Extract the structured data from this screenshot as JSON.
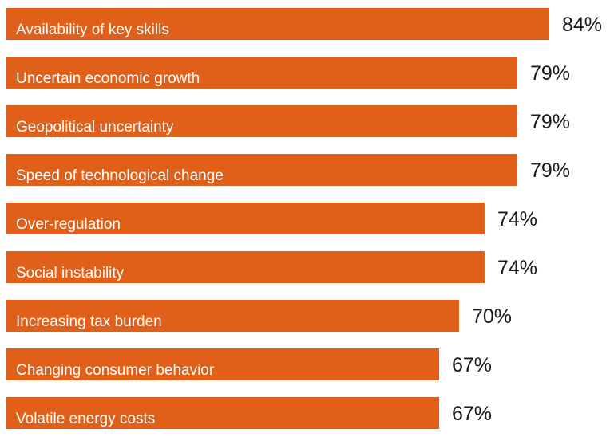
{
  "chart_data": {
    "type": "bar",
    "orientation": "horizontal",
    "categories": [
      "Availability of key skills",
      "Uncertain economic growth",
      "Geopolitical uncertainty",
      "Speed of technological change",
      "Over-regulation",
      "Social instability",
      "Increasing tax burden",
      "Changing consumer behavior",
      "Volatile energy costs"
    ],
    "values": [
      84,
      79,
      79,
      79,
      74,
      74,
      70,
      67,
      67
    ],
    "value_labels": [
      "84%",
      "79%",
      "79%",
      "79%",
      "74%",
      "74%",
      "70%",
      "67%",
      "67%"
    ],
    "unit": "%",
    "bar_color": "#e0601a",
    "label_color": "#ffffff",
    "grid": false,
    "legend": "none"
  }
}
